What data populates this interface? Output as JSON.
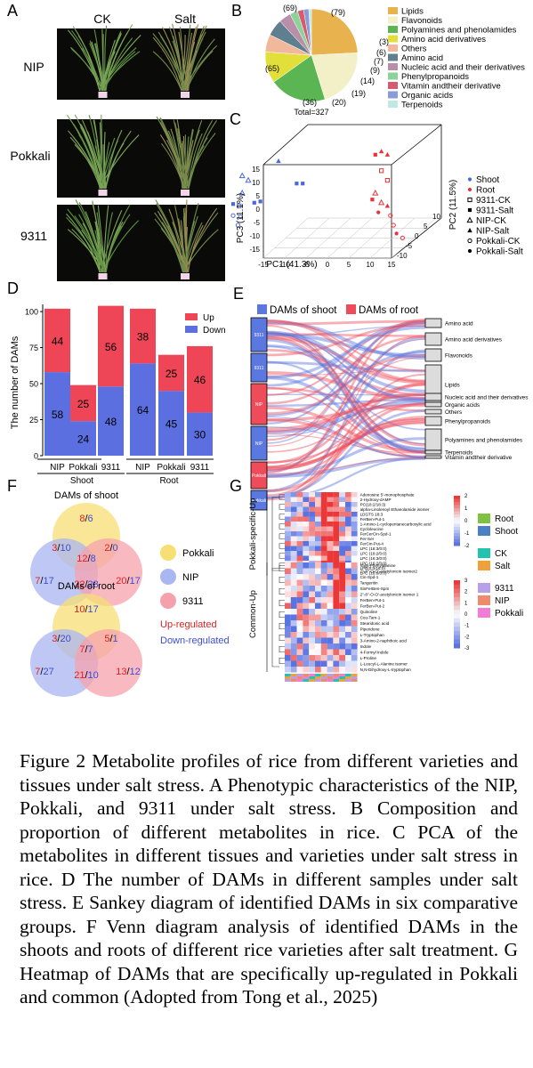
{
  "panel_letters": {
    "A": "A",
    "B": "B",
    "C": "C",
    "D": "D",
    "E": "E",
    "F": "F",
    "G": "G"
  },
  "panel_a": {
    "col_headers": [
      "CK",
      "Salt"
    ],
    "row_labels": [
      "NIP",
      "Pokkali",
      "9311"
    ]
  },
  "panel_b": {
    "total_label": "Total=327",
    "chart_data": {
      "type": "pie",
      "slices": [
        {
          "label": "Lipids",
          "value": 79,
          "color": "#e8b24e"
        },
        {
          "label": "Flavonoids",
          "value": 69,
          "color": "#f3f0c8"
        },
        {
          "label": "Polyamines and phenolamides",
          "value": 65,
          "color": "#5ab552"
        },
        {
          "label": "Amino acid derivatives",
          "value": 36,
          "color": "#e3df3a"
        },
        {
          "label": "Others",
          "value": 20,
          "color": "#f2b89c"
        },
        {
          "label": "Amino acid",
          "value": 19,
          "color": "#5f7f8f"
        },
        {
          "label": "Nucleic acid and their derivatives",
          "value": 14,
          "color": "#b98ea8"
        },
        {
          "label": "Phenylpropanoids",
          "value": 9,
          "color": "#8cd39a"
        },
        {
          "label": "Vitamin andtheir derivative",
          "value": 7,
          "color": "#d65a70"
        },
        {
          "label": "Organic acids",
          "value": 6,
          "color": "#8a9bd8"
        },
        {
          "label": "Terpenoids",
          "value": 3,
          "color": "#bde8e4"
        }
      ],
      "value_labels": [
        "(79)",
        "(69)",
        "(65)",
        "(36)",
        "(20)",
        "(19)",
        "(14)",
        "(9)",
        "(7)",
        "(6)",
        "(3)"
      ]
    }
  },
  "panel_c": {
    "chart_data": {
      "type": "scatter",
      "xlabel": "PC1 (41.3%)",
      "ylabel": "PC3 (11.1%)",
      "zlabel": "PC2 (11.5%)",
      "x_ticks": [
        "-15",
        "-10",
        "-5",
        "0",
        "5",
        "10",
        "15"
      ],
      "y_ticks": [
        "15",
        "10",
        "5",
        "0",
        "-5",
        "-10",
        "-15"
      ],
      "z_ticks": [
        "-10",
        "-5",
        "0",
        "5",
        "10"
      ],
      "legend": [
        {
          "label": "Shoot",
          "marker": "dot",
          "color": "#4a68d8"
        },
        {
          "label": "Root",
          "marker": "dot",
          "color": "#e8323c"
        },
        {
          "label": "9311-CK",
          "marker": "square-open",
          "color": "#000000"
        },
        {
          "label": "9311-Salt",
          "marker": "square",
          "color": "#000000"
        },
        {
          "label": "NIP-CK",
          "marker": "triangle-open",
          "color": "#000000"
        },
        {
          "label": "NIP-Salt",
          "marker": "triangle",
          "color": "#000000"
        },
        {
          "label": "Pokkali-CK",
          "marker": "circle-open",
          "color": "#000000"
        },
        {
          "label": "Pokkali-Salt",
          "marker": "circle",
          "color": "#000000"
        }
      ],
      "shoot_points": [
        [
          -13.5,
          5.2,
          "triangle-open"
        ],
        [
          -12.5,
          4.5,
          "triangle-open"
        ],
        [
          -13.5,
          2.5,
          "triangle-open"
        ],
        [
          -15,
          0.8,
          "square"
        ],
        [
          -14,
          0.5,
          "square-open"
        ],
        [
          -15,
          -1,
          "circle-open"
        ],
        [
          -13.8,
          -1.2,
          "circle-open"
        ],
        [
          -11.5,
          1.0,
          "square"
        ],
        [
          -10.5,
          1.2,
          "square"
        ],
        [
          -7.5,
          7.5,
          "triangle"
        ],
        [
          -4.5,
          4.0,
          "square"
        ],
        [
          -3.5,
          4.0,
          "square"
        ],
        [
          -14.2,
          -2.5,
          "circle-open"
        ]
      ],
      "root_points": [
        [
          8.5,
          8.5,
          "square"
        ],
        [
          9.5,
          9.0,
          "triangle"
        ],
        [
          10.5,
          8.5,
          "triangle"
        ],
        [
          9.5,
          6.0,
          "square-open"
        ],
        [
          10.5,
          4.5,
          "square-open"
        ],
        [
          8.5,
          2.5,
          "triangle-open"
        ],
        [
          9.5,
          1.0,
          "triangle-open"
        ],
        [
          10.5,
          0.5,
          "triangle"
        ],
        [
          11.0,
          -1.0,
          "circle-open"
        ],
        [
          11.5,
          -2.5,
          "circle-open"
        ],
        [
          12.0,
          -3.8,
          "circle"
        ],
        [
          13.0,
          -4.5,
          "circle-open"
        ],
        [
          9.0,
          -0.5,
          "circle"
        ],
        [
          8.0,
          1.5,
          "square"
        ]
      ]
    }
  },
  "panel_d": {
    "chart_data": {
      "type": "bar",
      "ylabel": "The number of DAMs",
      "ylim": [
        0,
        105
      ],
      "y_ticks": [
        "0",
        "25",
        "50",
        "75",
        "100"
      ],
      "categories": [
        "NIP",
        "Pokkali",
        "9311",
        "NIP",
        "Pokkali",
        "9311"
      ],
      "groups": [
        "Shoot",
        "Root"
      ],
      "series": [
        {
          "name": "Down",
          "color": "#5b6fe0",
          "values": [
            58,
            24,
            48,
            64,
            45,
            30
          ]
        },
        {
          "name": "Up",
          "color": "#ef4657",
          "values": [
            44,
            25,
            56,
            38,
            25,
            46
          ]
        }
      ],
      "legend": [
        "Up",
        "Down"
      ]
    }
  },
  "panel_e": {
    "legend": [
      {
        "label": "DAMs of shoot",
        "color": "#5a78e0"
      },
      {
        "label": "DAMs of root",
        "color": "#ee4b5b"
      }
    ],
    "left_nodes": [
      "9311",
      "9311",
      "NIP",
      "NIP",
      "Pokkali",
      "Pokkali"
    ],
    "right_nodes": [
      "Amino acid",
      "Amino acid derivatives",
      "Flavonoids",
      "Lipids",
      "Nucleic acid and their derivatives",
      "Organic acids",
      "Others",
      "Phenylpropanoids",
      "Polyamines and phenolamides",
      "Terpenoids",
      "Vitamin andtheir derivative"
    ]
  },
  "panel_f": {
    "legend": [
      {
        "label": "Pokkali",
        "color": "#f7df74"
      },
      {
        "label": "NIP",
        "color": "#a9b6f2"
      },
      {
        "label": "9311",
        "color": "#f5a1ac"
      }
    ],
    "up_label": "Up-regulated",
    "down_label": "Down-regulated",
    "shoot": {
      "title": "DAMs of shoot",
      "pokkali_only": [
        "8",
        "6"
      ],
      "pokkali_nip": [
        "3",
        "10"
      ],
      "pokkali_9311": [
        "2",
        "0"
      ],
      "all": [
        "12",
        "8"
      ],
      "nip_only": [
        "7",
        "17"
      ],
      "nip_9311": [
        "22",
        "23"
      ],
      "only_9311": [
        "20",
        "17"
      ]
    },
    "root": {
      "title": "DAMs of root",
      "pokkali_only": [
        "10",
        "17"
      ],
      "pokkali_nip": [
        "3",
        "20"
      ],
      "pokkali_9311": [
        "5",
        "1"
      ],
      "all": [
        "7",
        "7"
      ],
      "nip_only": [
        "7",
        "27"
      ],
      "nip_9311": [
        "21",
        "10"
      ],
      "only_9311": [
        "13",
        "12"
      ]
    }
  },
  "panel_g": {
    "group_labels": [
      "Pokkali-specific-Up",
      "Common-Up"
    ],
    "top_rows": [
      "Adenosine 5'-monophosphate",
      "2-Hydroxy-dAMP",
      "PC(18:2/18:3)",
      "alpha-Linolenoyl Ethanolamide isomer",
      "LDGTS 18:3",
      "FerBen-Put-1",
      "1-Amino-1-cyclopentanecarboxylic acid",
      "Cycloleucine",
      "FerCerCin-Spd-1",
      "Fer-Ser",
      "FerCin-Put-4",
      "LPC (18:3/0:0)",
      "LPC (18:2/0:0)",
      "LPC (16:3/0:0)",
      "LPC (16:2/0:0)",
      "LPE(0:0/16:0)",
      "LPC (16:0/0:0)"
    ],
    "bottom_rows": [
      "Valyl-Phenylalanine",
      "2''-8''-O-O'-acetylonicin isomer2",
      "Cin-Spd-1",
      "Tangeritin",
      "SinFerBen-Spm",
      "2''-8''-O-O'-acetylonicin isomer 1",
      "FerBen-Put-1",
      "FerBen-Put-2",
      "Quinoline",
      "Cou-Tam-1",
      "Stearidonic acid",
      "Piperidone",
      "L-Tryptophan",
      "3-Amino-2-naphthoic acid",
      "Indole",
      "4-Formyl Indole",
      "L-Proline",
      "L-Leucyl-L-Alanine isomer",
      "N,N-Dihydroxy-L-tryptophan"
    ],
    "scale_top": [
      "2",
      "1",
      "0",
      "-1",
      "-2"
    ],
    "scale_bottom": [
      "3",
      "2",
      "1",
      "0",
      "-1",
      "-2",
      "-3"
    ],
    "legend": [
      {
        "label": "Root",
        "color": "#7fc241"
      },
      {
        "label": "Shoot",
        "color": "#4a80c4"
      },
      {
        "label": "CK",
        "color": "#22c4b0"
      },
      {
        "label": "Salt",
        "color": "#f0a23a"
      },
      {
        "label": "9311",
        "color": "#b79ee8"
      },
      {
        "label": "NIP",
        "color": "#f08a6c"
      },
      {
        "label": "Pokkali",
        "color": "#f07cd6"
      }
    ]
  },
  "caption": "Figure 2 Metabolite profiles of rice from different varieties and tissues under salt stress. A Phenotypic characteristics of the NIP, Pokkali, and 9311 under salt stress. B Composition and proportion of different metabolites in rice. C PCA of the metabolites in different tissues and varieties under salt stress in rice. D The number of DAMs in different samples under salt stress. E Sankey diagram of identified DAMs in six comparative groups. F Venn diagram analysis of identified DAMs in the shoots and roots of different rice varieties after salt treatment. G Heatmap of DAMs that are specifically up-regulated in Pokkali and common (Adopted from Tong et al., 2025)"
}
